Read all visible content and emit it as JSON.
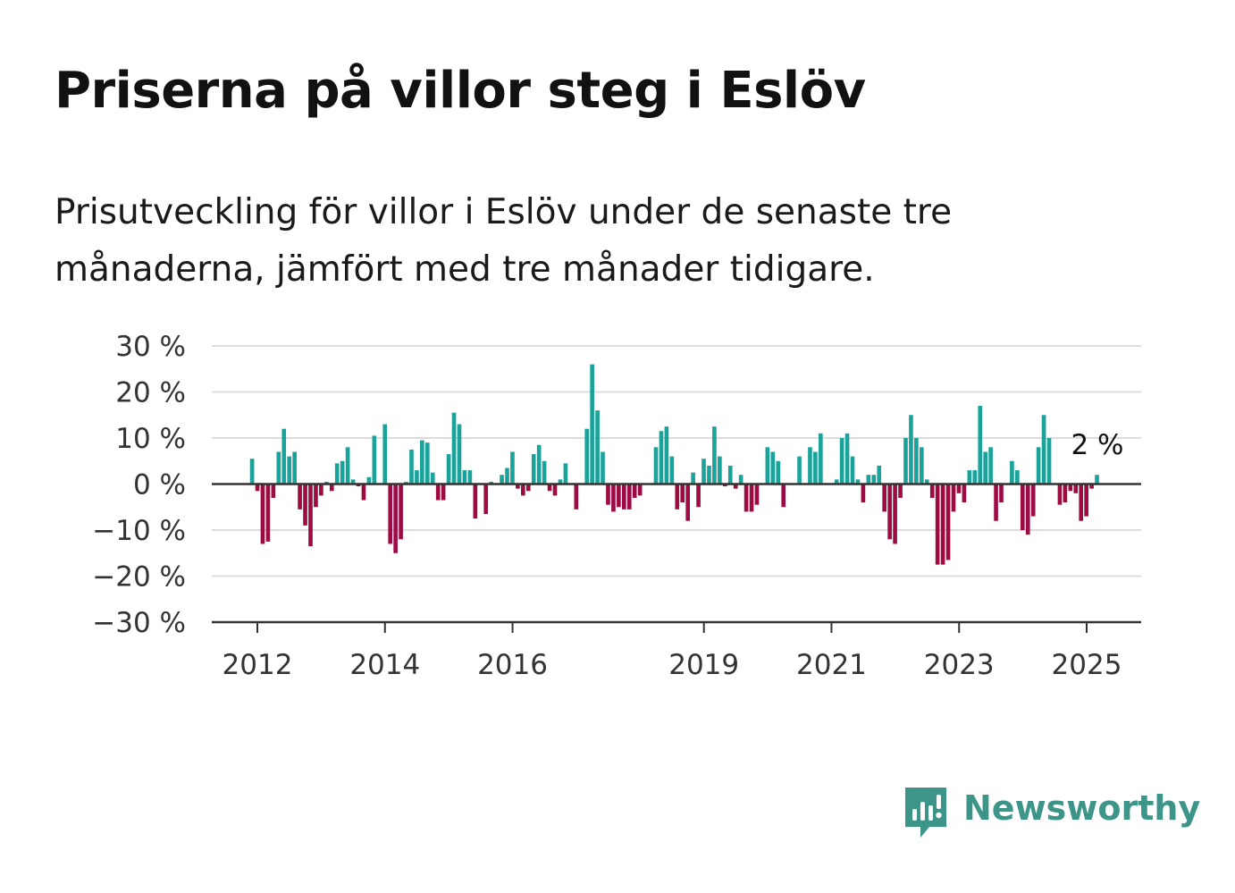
{
  "title": "Priserna på villor steg i Eslöv",
  "subtitle": "Prisutveckling för villor i Eslöv under de senaste tre månaderna, jämfört med tre månader tidigare.",
  "brand": "Newsworthy",
  "colors": {
    "positive": "#1aa39b",
    "negative": "#9e0a42",
    "grid": "#dcdcdc",
    "axis": "#333333",
    "brand": "#3c9588"
  },
  "chart_data": {
    "type": "bar",
    "y_tick_labels": [
      "30 %",
      "20 %",
      "10 %",
      "0 %",
      "−10 %",
      "−20 %",
      "−30 %"
    ],
    "y_ticks": [
      30,
      20,
      10,
      0,
      -10,
      -20,
      -30
    ],
    "ylim": [
      -30,
      30
    ],
    "x_tick_labels": [
      "2012",
      "2014",
      "2016",
      "2019",
      "2021",
      "2023",
      "2025"
    ],
    "x_ticks": [
      2012,
      2014,
      2016,
      2019,
      2021,
      2023,
      2025
    ],
    "x_start": 2011.917,
    "step": 0.0833,
    "last_value_label": "2 %",
    "grid": true,
    "values": [
      5.5,
      -1.5,
      -13,
      -12.5,
      -3,
      7,
      12,
      6,
      7,
      -5.5,
      -9,
      -13.5,
      -5,
      -2.5,
      0.5,
      -1.5,
      4.5,
      5,
      8,
      1,
      -0.5,
      -3.5,
      1.5,
      10.5,
      0,
      13,
      -13,
      -15,
      -12,
      0.5,
      7.5,
      3,
      9.5,
      9,
      2.5,
      -3.5,
      -3.5,
      6.5,
      15.5,
      13,
      3,
      3,
      -7.5,
      0,
      -6.5,
      0.5,
      0,
      2,
      3.5,
      7,
      -1,
      -2.5,
      -1.5,
      6.5,
      8.5,
      5,
      -1.5,
      -2.5,
      1,
      4.5,
      0,
      -5.5,
      0,
      12,
      26,
      16,
      7,
      -4.5,
      -6,
      -5,
      -5.5,
      -5.5,
      -3,
      -2.5,
      0,
      0,
      8,
      11.5,
      12.5,
      6,
      -5.5,
      -4,
      -8,
      2.5,
      -5,
      5.5,
      4,
      12.5,
      6,
      -0.5,
      4,
      -1,
      2,
      -6,
      -6,
      -4.5,
      0,
      8,
      7,
      5,
      -5,
      0,
      0,
      6,
      0,
      8,
      7,
      11,
      0,
      0,
      1,
      10,
      11,
      6,
      1,
      -4,
      2,
      2,
      4,
      -6,
      -12,
      -13,
      -3,
      10,
      15,
      10,
      8,
      1,
      -3,
      -17.5,
      -17.5,
      -16.5,
      -6,
      -2,
      -4,
      3,
      3,
      17,
      7,
      8,
      -8,
      -4,
      0,
      5,
      3,
      -10,
      -11,
      -7,
      8,
      15,
      10,
      0,
      -4.5,
      -4,
      -1.5,
      -2,
      -8,
      -7,
      -1,
      2
    ]
  }
}
